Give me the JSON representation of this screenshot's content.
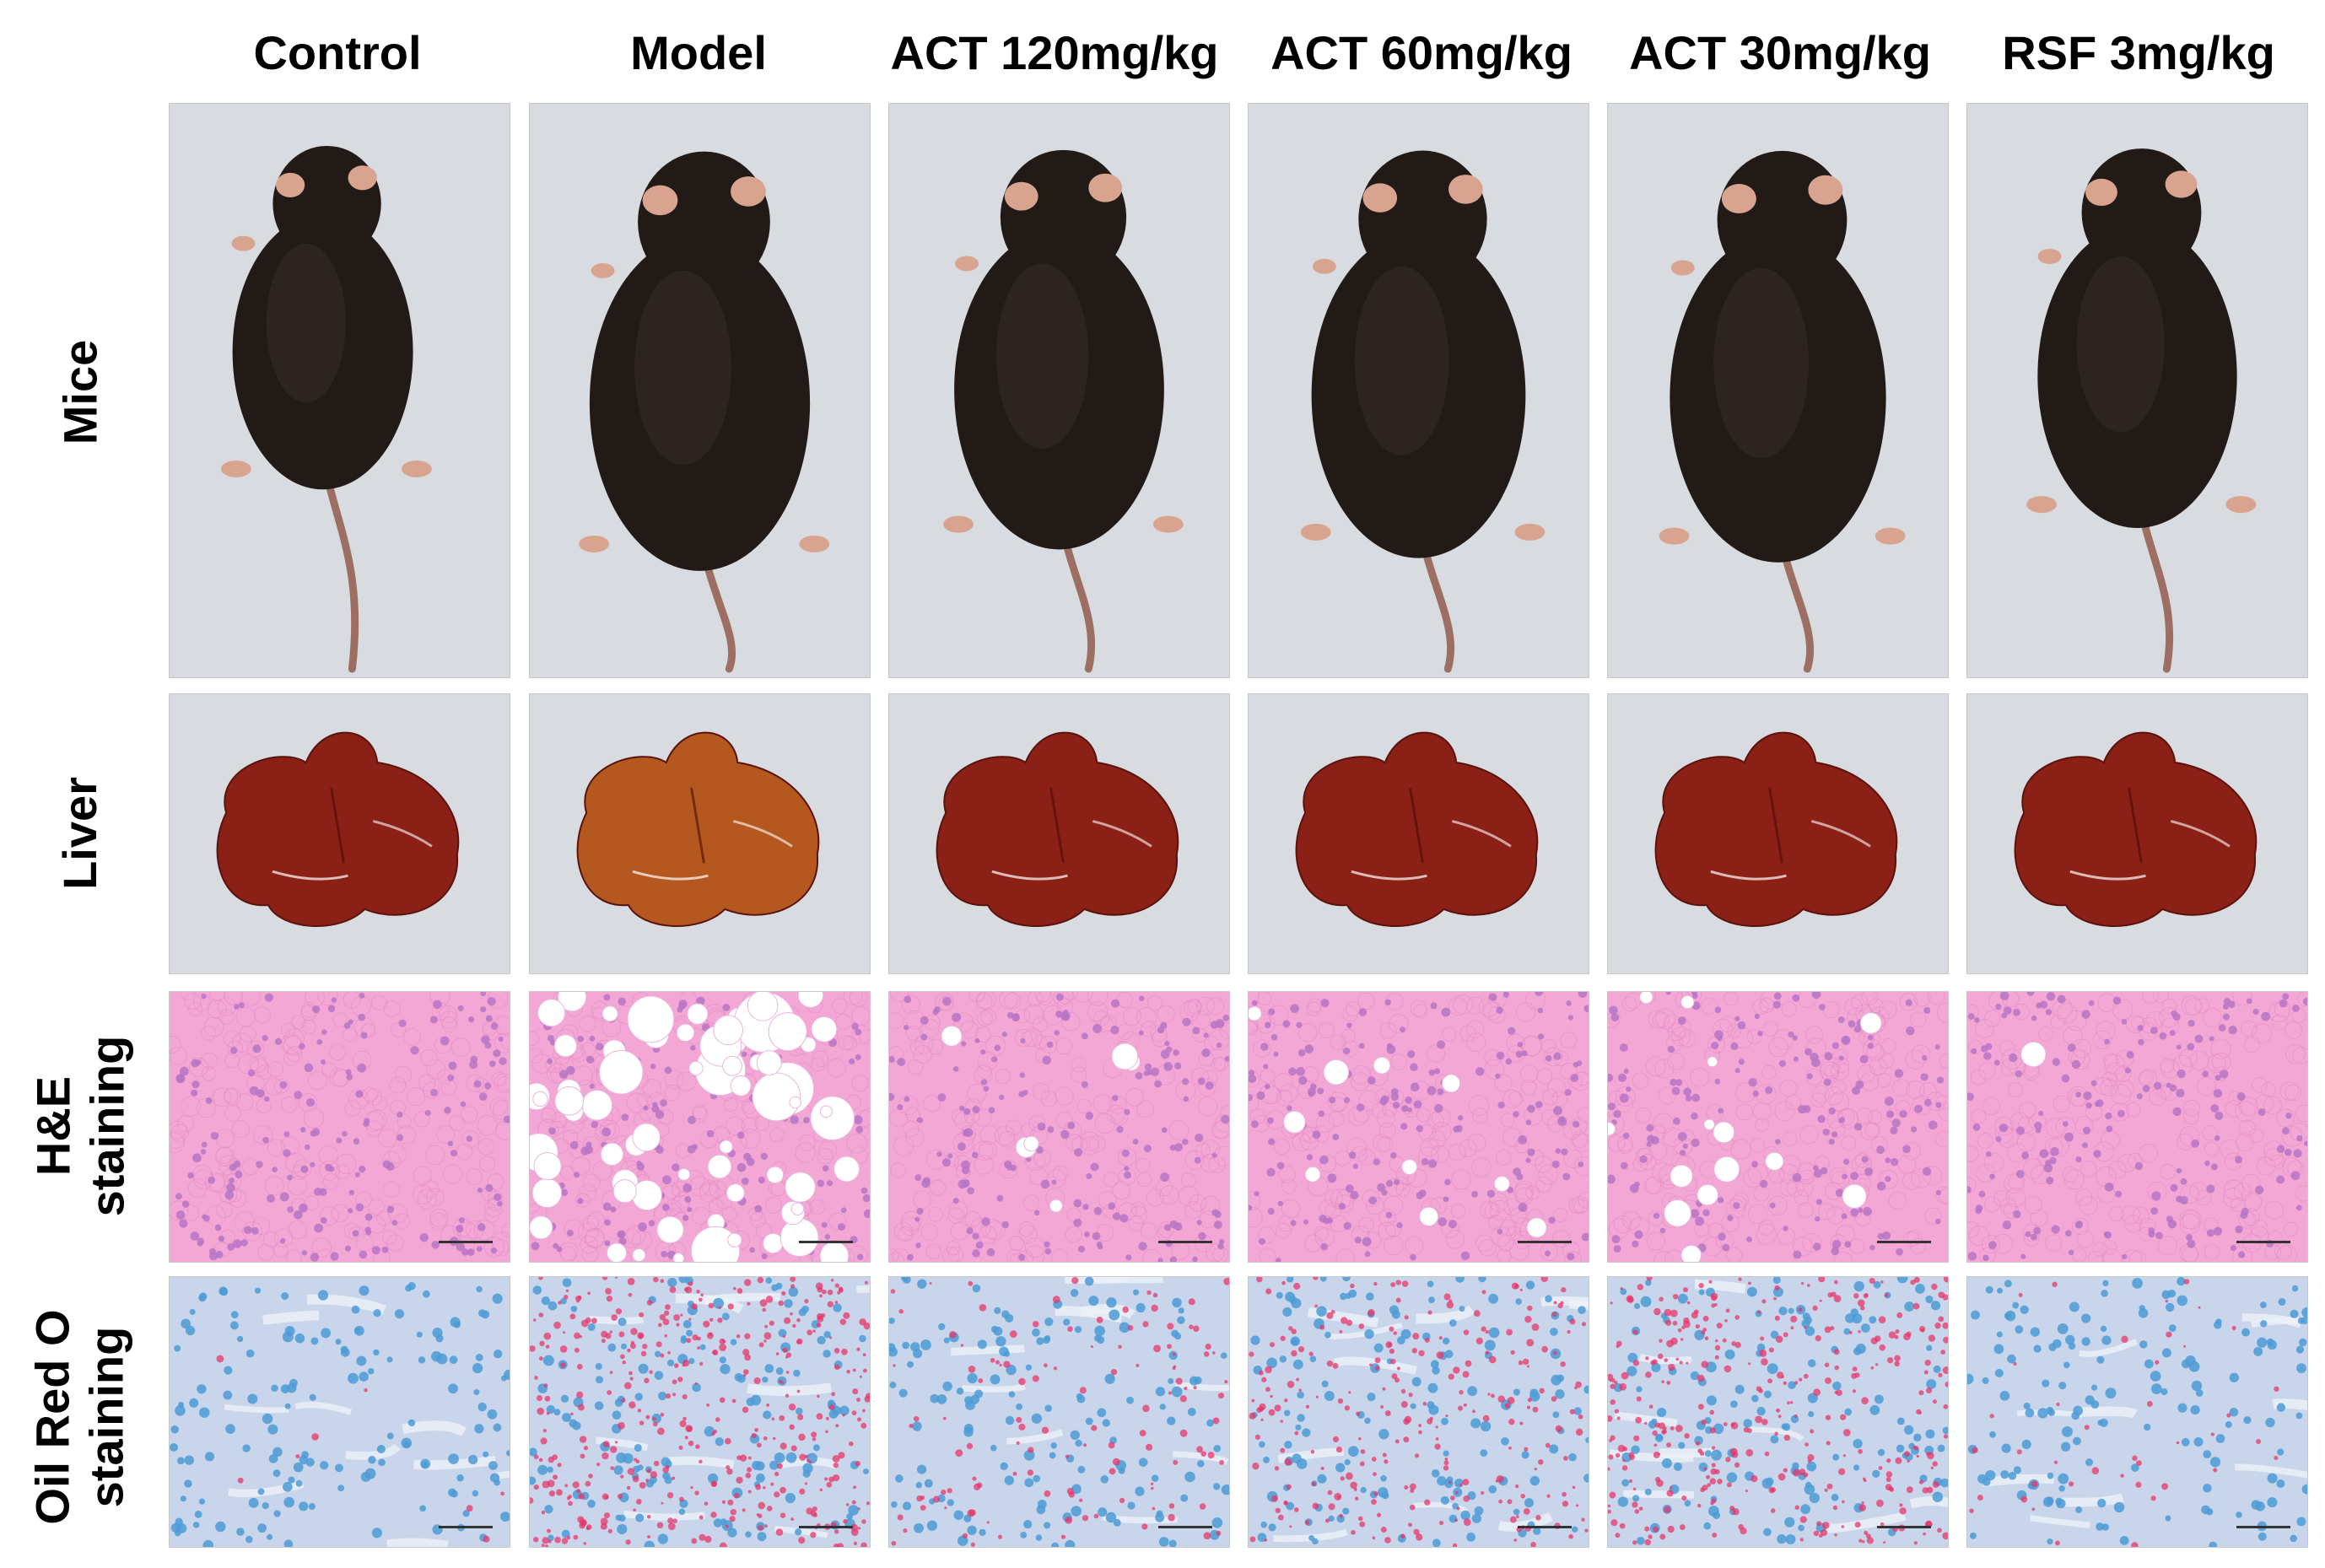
{
  "columns": [
    {
      "key": "control",
      "label": "Control"
    },
    {
      "key": "model",
      "label": "Model"
    },
    {
      "key": "act120",
      "label": "ACT 120mg/kg"
    },
    {
      "key": "act60",
      "label": "ACT 60mg/kg"
    },
    {
      "key": "act30",
      "label": "ACT 30mg/kg"
    },
    {
      "key": "rsf3",
      "label": "RSF 3mg/kg"
    }
  ],
  "rows": {
    "mice": {
      "label": "Mice"
    },
    "liver": {
      "label": "Liver"
    },
    "he": {
      "line1": "H&E",
      "line2": "staining"
    },
    "oro": {
      "line1": "Oil Red O",
      "line2": "staining"
    }
  },
  "colors": {
    "mouse_fur": "#221a17",
    "mouse_tail": "#9c6f62",
    "mouse_ear": "#d9a48f",
    "photo_background": "#d8dbdf",
    "liver_normal": "#8b2016",
    "liver_model": "#b5581f",
    "he_background": "#f3a7d5",
    "he_nucleus": "#b774c6",
    "oro_background": "#c9d5ea",
    "oro_nucleus": "#4c9bd6",
    "oro_lipid": "#e6366a"
  },
  "icons": {
    "mouse": "mouse-photo-icon",
    "liver": "liver-photo-icon",
    "scale": "scale-bar-icon"
  }
}
